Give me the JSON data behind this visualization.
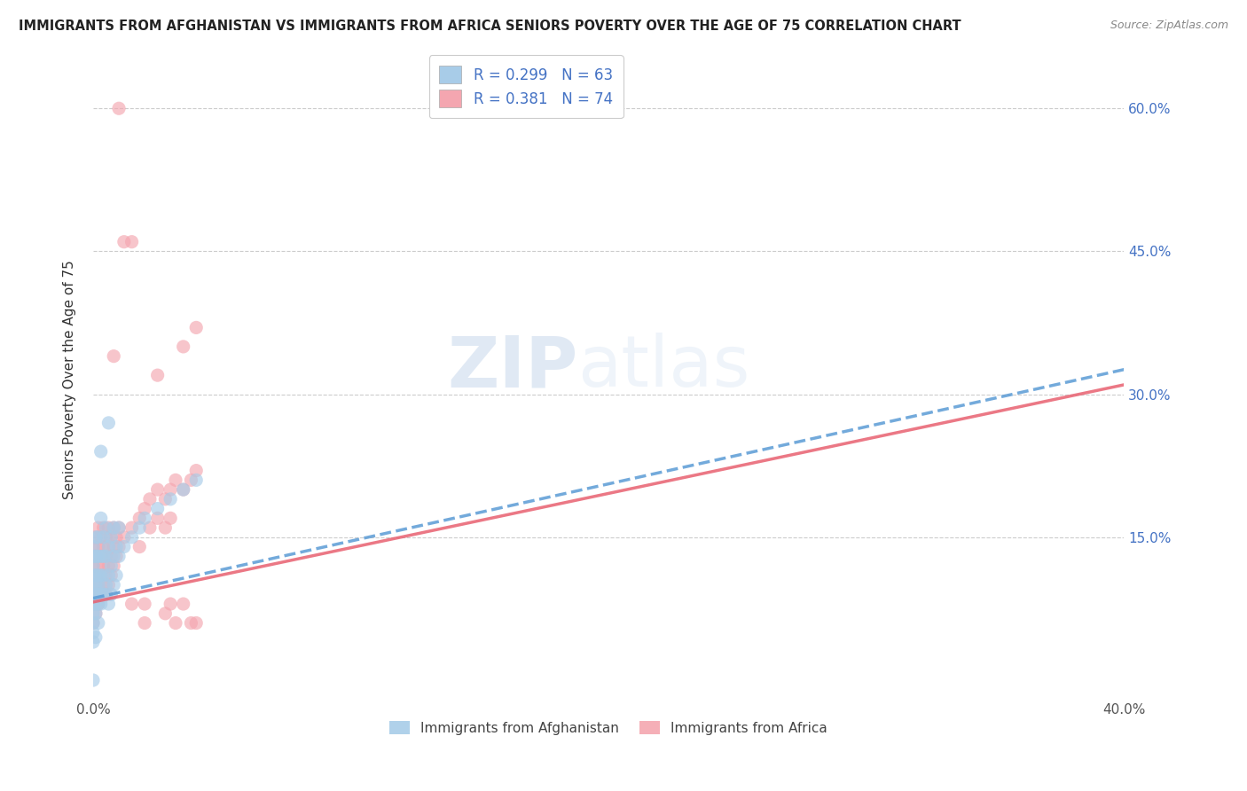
{
  "title": "IMMIGRANTS FROM AFGHANISTAN VS IMMIGRANTS FROM AFRICA SENIORS POVERTY OVER THE AGE OF 75 CORRELATION CHART",
  "source": "Source: ZipAtlas.com",
  "ylabel": "Seniors Poverty Over the Age of 75",
  "xlim": [
    0.0,
    0.4
  ],
  "ylim": [
    -0.02,
    0.65
  ],
  "ytick_labels_right": [
    "60.0%",
    "45.0%",
    "30.0%",
    "15.0%"
  ],
  "ytick_positions_right": [
    0.6,
    0.45,
    0.3,
    0.15
  ],
  "afghanistan_R": 0.299,
  "afghanistan_N": 63,
  "africa_R": 0.381,
  "africa_N": 74,
  "afghanistan_color": "#a8cce8",
  "africa_color": "#f4a6b0",
  "afghanistan_line_color": "#5b9bd5",
  "africa_line_color": "#e86070",
  "watermark_zip": "ZIP",
  "watermark_atlas": "atlas",
  "legend_labels": [
    "Immigrants from Afghanistan",
    "Immigrants from Africa"
  ],
  "afg_line": [
    0.0,
    0.086,
    0.4,
    0.326
  ],
  "afr_line": [
    0.0,
    0.082,
    0.4,
    0.31
  ],
  "afghanistan_scatter": [
    [
      0.0,
      0.05
    ],
    [
      0.0,
      0.07
    ],
    [
      0.0,
      0.09
    ],
    [
      0.0,
      0.1
    ],
    [
      0.0,
      0.11
    ],
    [
      0.0,
      0.12
    ],
    [
      0.0,
      0.13
    ],
    [
      0.0,
      0.14
    ],
    [
      0.0,
      0.06
    ],
    [
      0.0,
      0.08
    ],
    [
      0.001,
      0.07
    ],
    [
      0.001,
      0.09
    ],
    [
      0.001,
      0.11
    ],
    [
      0.001,
      0.13
    ],
    [
      0.001,
      0.15
    ],
    [
      0.001,
      0.1
    ],
    [
      0.001,
      0.08
    ],
    [
      0.002,
      0.09
    ],
    [
      0.002,
      0.11
    ],
    [
      0.002,
      0.13
    ],
    [
      0.002,
      0.15
    ],
    [
      0.002,
      0.08
    ],
    [
      0.002,
      0.1
    ],
    [
      0.003,
      0.09
    ],
    [
      0.003,
      0.11
    ],
    [
      0.003,
      0.13
    ],
    [
      0.003,
      0.17
    ],
    [
      0.003,
      0.08
    ],
    [
      0.004,
      0.11
    ],
    [
      0.004,
      0.13
    ],
    [
      0.004,
      0.09
    ],
    [
      0.004,
      0.15
    ],
    [
      0.005,
      0.1
    ],
    [
      0.005,
      0.13
    ],
    [
      0.005,
      0.16
    ],
    [
      0.005,
      0.09
    ],
    [
      0.006,
      0.11
    ],
    [
      0.006,
      0.14
    ],
    [
      0.006,
      0.08
    ],
    [
      0.006,
      0.27
    ],
    [
      0.007,
      0.12
    ],
    [
      0.007,
      0.15
    ],
    [
      0.007,
      0.09
    ],
    [
      0.008,
      0.13
    ],
    [
      0.008,
      0.16
    ],
    [
      0.008,
      0.1
    ],
    [
      0.009,
      0.11
    ],
    [
      0.009,
      0.14
    ],
    [
      0.01,
      0.13
    ],
    [
      0.01,
      0.16
    ],
    [
      0.012,
      0.14
    ],
    [
      0.015,
      0.15
    ],
    [
      0.018,
      0.16
    ],
    [
      0.02,
      0.17
    ],
    [
      0.025,
      0.18
    ],
    [
      0.003,
      0.24
    ],
    [
      0.03,
      0.19
    ],
    [
      0.035,
      0.2
    ],
    [
      0.04,
      0.21
    ],
    [
      0.002,
      0.06
    ],
    [
      0.001,
      0.045
    ],
    [
      0.0,
      0.04
    ],
    [
      0.0,
      0.0
    ]
  ],
  "africa_scatter": [
    [
      0.0,
      0.06
    ],
    [
      0.0,
      0.08
    ],
    [
      0.0,
      0.1
    ],
    [
      0.0,
      0.12
    ],
    [
      0.0,
      0.14
    ],
    [
      0.001,
      0.07
    ],
    [
      0.001,
      0.09
    ],
    [
      0.001,
      0.11
    ],
    [
      0.001,
      0.13
    ],
    [
      0.001,
      0.15
    ],
    [
      0.002,
      0.08
    ],
    [
      0.002,
      0.1
    ],
    [
      0.002,
      0.12
    ],
    [
      0.002,
      0.14
    ],
    [
      0.002,
      0.16
    ],
    [
      0.003,
      0.09
    ],
    [
      0.003,
      0.11
    ],
    [
      0.003,
      0.13
    ],
    [
      0.003,
      0.15
    ],
    [
      0.004,
      0.1
    ],
    [
      0.004,
      0.12
    ],
    [
      0.004,
      0.14
    ],
    [
      0.004,
      0.16
    ],
    [
      0.005,
      0.09
    ],
    [
      0.005,
      0.11
    ],
    [
      0.005,
      0.13
    ],
    [
      0.005,
      0.15
    ],
    [
      0.006,
      0.1
    ],
    [
      0.006,
      0.12
    ],
    [
      0.006,
      0.14
    ],
    [
      0.006,
      0.16
    ],
    [
      0.007,
      0.11
    ],
    [
      0.007,
      0.13
    ],
    [
      0.007,
      0.15
    ],
    [
      0.008,
      0.12
    ],
    [
      0.008,
      0.14
    ],
    [
      0.008,
      0.16
    ],
    [
      0.009,
      0.13
    ],
    [
      0.009,
      0.15
    ],
    [
      0.01,
      0.14
    ],
    [
      0.01,
      0.16
    ],
    [
      0.012,
      0.15
    ],
    [
      0.015,
      0.16
    ],
    [
      0.018,
      0.17
    ],
    [
      0.02,
      0.18
    ],
    [
      0.02,
      0.06
    ],
    [
      0.022,
      0.19
    ],
    [
      0.025,
      0.2
    ],
    [
      0.025,
      0.17
    ],
    [
      0.028,
      0.19
    ],
    [
      0.028,
      0.07
    ],
    [
      0.03,
      0.2
    ],
    [
      0.03,
      0.17
    ],
    [
      0.032,
      0.21
    ],
    [
      0.035,
      0.2
    ],
    [
      0.035,
      0.35
    ],
    [
      0.038,
      0.21
    ],
    [
      0.038,
      0.06
    ],
    [
      0.04,
      0.22
    ],
    [
      0.04,
      0.06
    ],
    [
      0.008,
      0.34
    ],
    [
      0.01,
      0.6
    ],
    [
      0.012,
      0.46
    ],
    [
      0.015,
      0.46
    ],
    [
      0.025,
      0.32
    ],
    [
      0.02,
      0.08
    ],
    [
      0.015,
      0.08
    ],
    [
      0.03,
      0.08
    ],
    [
      0.035,
      0.08
    ],
    [
      0.04,
      0.37
    ],
    [
      0.022,
      0.16
    ],
    [
      0.032,
      0.06
    ],
    [
      0.018,
      0.14
    ],
    [
      0.028,
      0.16
    ]
  ]
}
